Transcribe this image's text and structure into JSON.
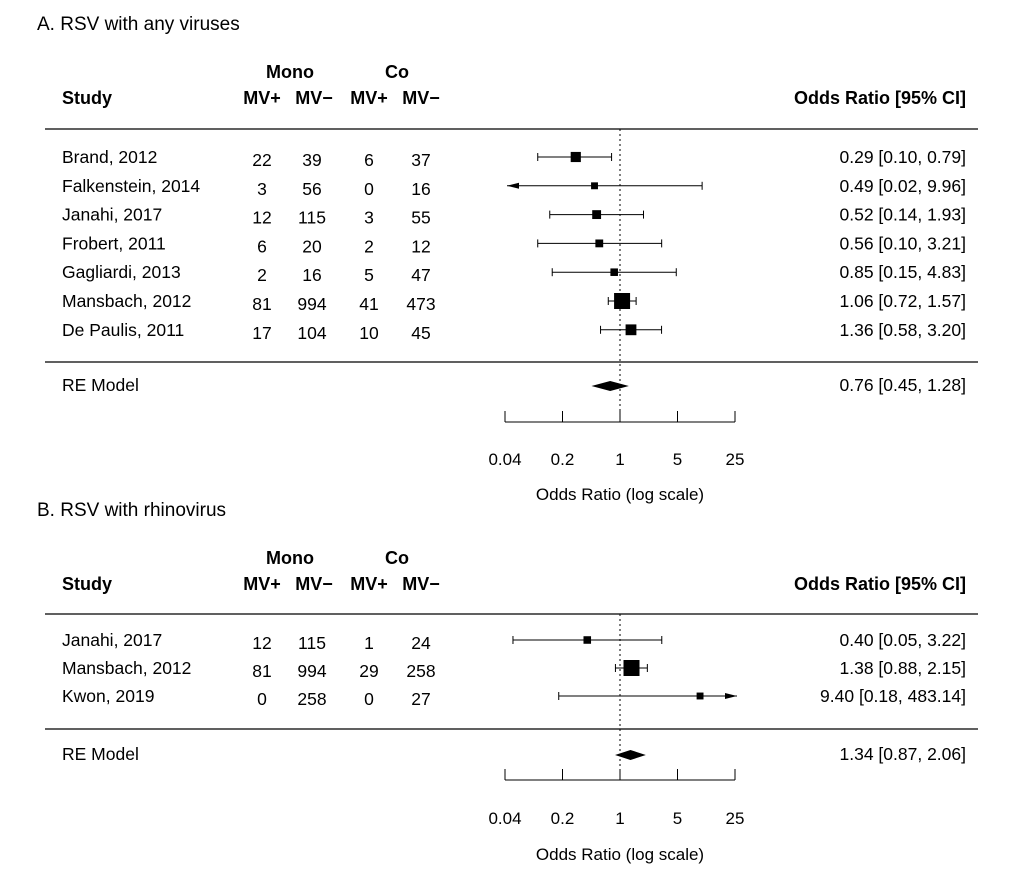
{
  "chart_data": [
    {
      "type": "forest",
      "title": "A. RSV with any viruses",
      "headers": {
        "study": "Study",
        "group1": "Mono",
        "group2": "Co",
        "mvpos": "MV+",
        "mvneg": "MV−",
        "or_ci": "Odds Ratio [95% CI]"
      },
      "studies": [
        {
          "study": "Brand, 2012",
          "mono_mvpos": "22",
          "mono_mvneg": "39",
          "co_mvpos": "6",
          "co_mvneg": "37",
          "or": 0.29,
          "lo": 0.1,
          "hi": 0.79,
          "label": "0.29 [0.10, 0.79]",
          "weight": 0.55
        },
        {
          "study": "Falkenstein, 2014",
          "mono_mvpos": "3",
          "mono_mvneg": "56",
          "co_mvpos": "0",
          "co_mvneg": "16",
          "or": 0.49,
          "lo": 0.02,
          "hi": 9.96,
          "label": "0.49 [0.02, 9.96]",
          "weight": 0.3
        },
        {
          "study": "Janahi, 2017",
          "mono_mvpos": "12",
          "mono_mvneg": "115",
          "co_mvpos": "3",
          "co_mvneg": "55",
          "or": 0.52,
          "lo": 0.14,
          "hi": 1.93,
          "label": "0.52 [0.14, 1.93]",
          "weight": 0.45
        },
        {
          "study": "Frobert, 2011",
          "mono_mvpos": "6",
          "mono_mvneg": "20",
          "co_mvpos": "2",
          "co_mvneg": "12",
          "or": 0.56,
          "lo": 0.1,
          "hi": 3.21,
          "label": "0.56 [0.10, 3.21]",
          "weight": 0.37
        },
        {
          "study": "Gagliardi, 2013",
          "mono_mvpos": "2",
          "mono_mvneg": "16",
          "co_mvpos": "5",
          "co_mvneg": "47",
          "or": 0.85,
          "lo": 0.15,
          "hi": 4.83,
          "label": "0.85 [0.15, 4.83]",
          "weight": 0.35
        },
        {
          "study": "Mansbach, 2012",
          "mono_mvpos": "81",
          "mono_mvneg": "994",
          "co_mvpos": "41",
          "co_mvneg": "473",
          "or": 1.06,
          "lo": 0.72,
          "hi": 1.57,
          "label": "1.06 [0.72, 1.57]",
          "weight": 1.0
        },
        {
          "study": "De Paulis, 2011",
          "mono_mvpos": "17",
          "mono_mvneg": "104",
          "co_mvpos": "10",
          "co_mvneg": "45",
          "or": 1.36,
          "lo": 0.58,
          "hi": 3.2,
          "label": "1.36 [0.58, 3.20]",
          "weight": 0.6
        }
      ],
      "summary": {
        "label": "RE Model",
        "or": 0.76,
        "lo": 0.45,
        "hi": 1.28,
        "ci_label": "0.76 [0.45, 1.28]"
      },
      "x_scale": "log",
      "xlim": [
        0.04,
        25
      ],
      "xticks": [
        0.04,
        0.2,
        1,
        5,
        25
      ],
      "xtick_labels": [
        "0.04",
        "0.2",
        "1",
        "5",
        "25"
      ],
      "reference_line": 1,
      "xlabel": "Odds Ratio (log scale)"
    },
    {
      "type": "forest",
      "title": "B. RSV with rhinovirus",
      "headers": {
        "study": "Study",
        "group1": "Mono",
        "group2": "Co",
        "mvpos": "MV+",
        "mvneg": "MV−",
        "or_ci": "Odds Ratio [95% CI]"
      },
      "studies": [
        {
          "study": "Janahi, 2017",
          "mono_mvpos": "12",
          "mono_mvneg": "115",
          "co_mvpos": "1",
          "co_mvneg": "24",
          "or": 0.4,
          "lo": 0.05,
          "hi": 3.22,
          "label": "0.40 [0.05,   3.22]",
          "weight": 0.35
        },
        {
          "study": "Mansbach, 2012",
          "mono_mvpos": "81",
          "mono_mvneg": "994",
          "co_mvpos": "29",
          "co_mvneg": "258",
          "or": 1.38,
          "lo": 0.88,
          "hi": 2.15,
          "label": "1.38 [0.88,   2.15]",
          "weight": 1.0
        },
        {
          "study": "Kwon, 2019",
          "mono_mvpos": "0",
          "mono_mvneg": "258",
          "co_mvpos": "0",
          "co_mvneg": "27",
          "or": 9.4,
          "lo": 0.18,
          "hi": 483.14,
          "label": "9.40 [0.18, 483.14]",
          "weight": 0.3
        }
      ],
      "summary": {
        "label": "RE Model",
        "or": 1.34,
        "lo": 0.87,
        "hi": 2.06,
        "ci_label": "1.34 [0.87,   2.06]"
      },
      "x_scale": "log",
      "xlim": [
        0.04,
        25
      ],
      "xticks": [
        0.04,
        0.2,
        1,
        5,
        25
      ],
      "xtick_labels": [
        "0.04",
        "0.2",
        "1",
        "5",
        "25"
      ],
      "reference_line": 1,
      "xlabel": "Odds Ratio (log scale)"
    }
  ]
}
